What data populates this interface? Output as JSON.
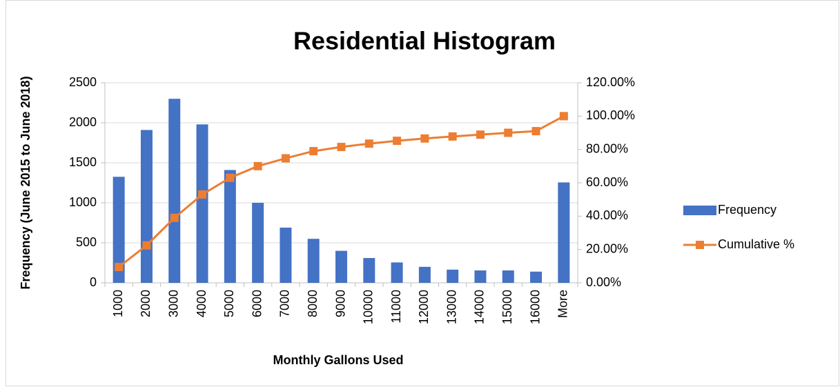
{
  "chart_data": {
    "type": "bar",
    "title": "Residential Histogram",
    "x_label": "Monthly Gallons Used",
    "y_label": "Frequency (June 2015 to June 2018)",
    "categories": [
      "1000",
      "2000",
      "3000",
      "4000",
      "5000",
      "6000",
      "7000",
      "8000",
      "9000",
      "10000",
      "11000",
      "12000",
      "13000",
      "14000",
      "15000",
      "16000",
      "More"
    ],
    "series": [
      {
        "name": "Frequency",
        "type": "bar",
        "color": "#4472c4",
        "values": [
          1325,
          1910,
          2300,
          1980,
          1410,
          1000,
          690,
          550,
          400,
          310,
          255,
          200,
          165,
          155,
          155,
          140,
          1255
        ]
      },
      {
        "name": "Cumulative %",
        "type": "line",
        "axis": "y2",
        "color": "#ed7d31",
        "values": [
          9.5,
          22.5,
          39,
          53,
          63,
          70,
          74.7,
          79,
          81.5,
          83.5,
          85.2,
          86.6,
          87.8,
          88.9,
          90,
          91,
          100
        ]
      }
    ],
    "ylim": [
      0,
      2500
    ],
    "yticks": [
      0,
      500,
      1000,
      1500,
      2000,
      2500
    ],
    "y2lim": [
      0,
      120
    ],
    "y2ticks": [
      {
        "value": 0,
        "label": "0.00%"
      },
      {
        "value": 20,
        "label": "20.00%"
      },
      {
        "value": 40,
        "label": "40.00%"
      },
      {
        "value": 60,
        "label": "60.00%"
      },
      {
        "value": 80,
        "label": "80.00%"
      },
      {
        "value": 100,
        "label": "100.00%"
      },
      {
        "value": 120,
        "label": "120.00%"
      }
    ],
    "grid": true,
    "legend": "right"
  }
}
